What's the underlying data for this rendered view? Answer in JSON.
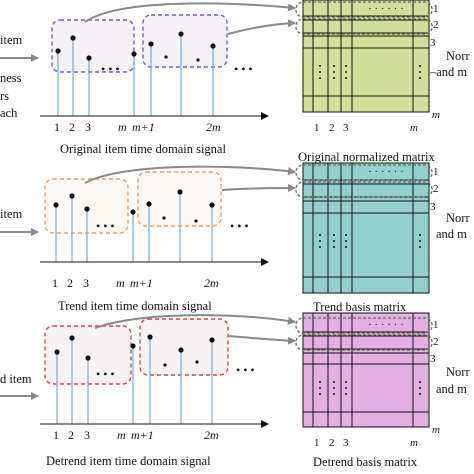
{
  "left_fragments": {
    "panel1": [
      "item",
      "ness",
      "rs",
      "ach"
    ],
    "panel2": [
      "item"
    ],
    "panel3": [
      "d item"
    ]
  },
  "right_fragments": {
    "panel1": [
      "Norr",
      "–and m"
    ],
    "panel2": [
      "Norr",
      "and m"
    ],
    "panel3": [
      "Norr",
      "and m"
    ]
  },
  "axis_ticks": [
    "1",
    "2",
    "3",
    "m",
    "m+1",
    "2m"
  ],
  "matrix_ticks": [
    "1",
    "2",
    "3",
    "m"
  ],
  "row_labels": [
    "1",
    "2",
    "3",
    "m"
  ],
  "dots_h": "• • •",
  "dots_mat": "· · ·   · · ·",
  "panels": [
    {
      "signal_caption": "Original item time domain signal",
      "matrix_caption": "Original normalized matrix",
      "box_color": "#7a56c2",
      "matrix_color": "#d2df9a"
    },
    {
      "signal_caption": "Trend item time domain signal",
      "matrix_caption": "Trend basis matrix",
      "box_color": "#e9a05c",
      "matrix_color": "#92d0cc"
    },
    {
      "signal_caption": "Detrend item time domain signal",
      "matrix_caption": "Detrend basis matrix",
      "box_color": "#d2464a",
      "matrix_color": "#e2b0e0"
    }
  ]
}
